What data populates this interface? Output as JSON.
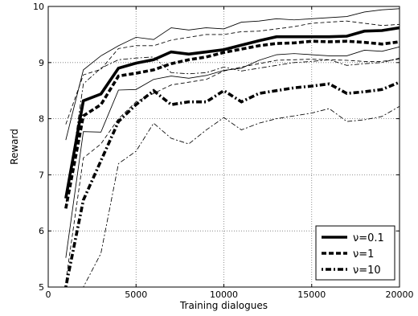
{
  "chart_data": {
    "type": "line",
    "xlabel": "Training dialogues",
    "ylabel": "Reward",
    "xlim": [
      0,
      20000
    ],
    "ylim": [
      5,
      10
    ],
    "x_ticks": [
      0,
      5000,
      10000,
      15000,
      20000
    ],
    "y_ticks": [
      5,
      6,
      7,
      8,
      9,
      10
    ],
    "x_tick_labels": [
      "0",
      "5000",
      "10000",
      "15000",
      "20000"
    ],
    "y_tick_labels": [
      "5",
      "6",
      "7",
      "8",
      "9",
      "10"
    ],
    "grid": true,
    "legend_position": "bottom-right",
    "x": [
      1000,
      2000,
      3000,
      4000,
      5000,
      6000,
      7000,
      8000,
      9000,
      10000,
      11000,
      12000,
      13000,
      14000,
      15000,
      16000,
      17000,
      18000,
      19000,
      20000
    ],
    "series": [
      {
        "name": "ν=0.1",
        "style": "solid",
        "values": [
          6.58,
          8.32,
          8.44,
          8.9,
          8.99,
          9.05,
          9.19,
          9.15,
          9.19,
          9.23,
          9.31,
          9.39,
          9.46,
          9.46,
          9.46,
          9.46,
          9.47,
          9.56,
          9.57,
          9.62
        ],
        "band_upper": [
          7.62,
          8.87,
          9.12,
          9.3,
          9.45,
          9.41,
          9.62,
          9.58,
          9.62,
          9.6,
          9.72,
          9.74,
          9.78,
          9.76,
          9.78,
          9.8,
          9.82,
          9.9,
          9.94,
          9.96
        ],
        "band_lower": [
          5.52,
          7.77,
          7.76,
          8.51,
          8.52,
          8.7,
          8.76,
          8.72,
          8.77,
          8.86,
          8.9,
          9.04,
          9.14,
          9.16,
          9.14,
          9.12,
          9.12,
          9.22,
          9.2,
          9.28
        ]
      },
      {
        "name": "ν=1",
        "style": "dashed",
        "values": [
          6.4,
          8.05,
          8.25,
          8.76,
          8.81,
          8.87,
          8.98,
          9.05,
          9.1,
          9.18,
          9.24,
          9.3,
          9.34,
          9.35,
          9.38,
          9.37,
          9.38,
          9.36,
          9.33,
          9.37
        ],
        "band_upper": [
          7.9,
          8.78,
          8.88,
          9.25,
          9.3,
          9.3,
          9.4,
          9.45,
          9.5,
          9.5,
          9.55,
          9.56,
          9.6,
          9.64,
          9.7,
          9.72,
          9.74,
          9.7,
          9.66,
          9.68
        ],
        "band_lower": [
          5.1,
          7.3,
          7.55,
          8.0,
          8.3,
          8.45,
          8.6,
          8.65,
          8.7,
          8.85,
          8.92,
          8.98,
          9.04,
          9.05,
          9.06,
          9.05,
          9.04,
          9.02,
          9.02,
          9.06
        ]
      },
      {
        "name": "ν=10",
        "style": "dashdot",
        "values": [
          5.0,
          6.55,
          7.25,
          7.95,
          8.25,
          8.5,
          8.25,
          8.3,
          8.3,
          8.5,
          8.3,
          8.45,
          8.5,
          8.55,
          8.58,
          8.62,
          8.45,
          8.48,
          8.52,
          8.65
        ],
        "band_upper": [
          6.45,
          8.62,
          8.9,
          9.05,
          9.08,
          9.1,
          8.82,
          8.8,
          8.82,
          8.92,
          8.85,
          8.9,
          8.95,
          9.0,
          9.02,
          9.05,
          8.95,
          8.98,
          9.0,
          9.08
        ],
        "band_lower": [
          5.0,
          5.0,
          5.6,
          7.2,
          7.42,
          7.92,
          7.65,
          7.55,
          7.8,
          8.02,
          7.8,
          7.92,
          8.0,
          8.05,
          8.1,
          8.18,
          7.95,
          7.98,
          8.04,
          8.22
        ]
      }
    ]
  },
  "colors": {
    "background": "#ffffff",
    "line": "#000000",
    "grid": "#888888"
  }
}
